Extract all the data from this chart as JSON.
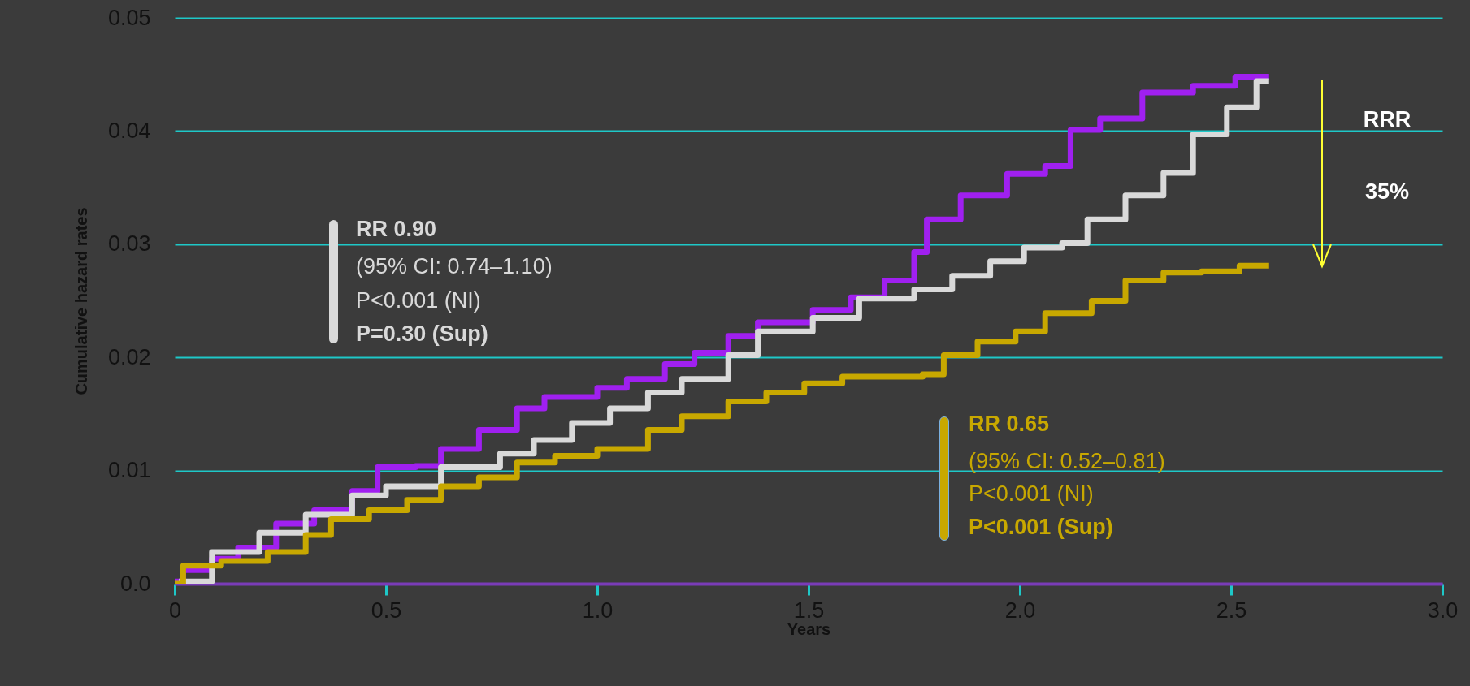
{
  "chart_data": {
    "type": "step",
    "xlabel": "Years",
    "ylabel": "Cumulative hazard rates",
    "xlim": [
      0,
      3.0
    ],
    "xticks": [
      0,
      0.5,
      {
        "value": 1,
        "label": "1.0"
      },
      1.5,
      {
        "value": 2,
        "label": "2.0"
      },
      2.5,
      {
        "value": 3,
        "label": "3.0"
      }
    ],
    "ylim": [
      0,
      0.05
    ],
    "yticks": [
      {
        "value": 0,
        "label": "0.0"
      },
      0.01,
      0.02,
      0.03,
      0.04,
      0.05
    ],
    "grid": "y",
    "legend": false,
    "marker": "none",
    "line_style": "solid",
    "annotations": [
      "RR 0.90",
      "(95% CI: 0.74–1.10)",
      "P<0.001 (NI)",
      "P=0.30 (Sup)",
      "RR 0.65",
      "(95% CI: 0.52–0.81)",
      "P<0.001 (NI)",
      "P<0.001 (Sup)",
      "RRR",
      "35%"
    ],
    "series": [
      {
        "color": "#a020f0",
        "x": [
          0,
          0.02,
          0.088,
          0.15,
          0.24,
          0.33,
          0.42,
          0.48,
          0.57,
          0.63,
          0.72,
          0.81,
          0.875,
          1.0,
          1.07,
          1.16,
          1.23,
          1.31,
          1.38,
          1.51,
          1.6,
          1.68,
          1.75,
          1.78,
          1.86,
          1.97,
          2.06,
          2.12,
          2.19,
          2.29,
          2.41,
          2.51,
          2.59
        ],
        "values": [
          0.0002,
          0.0012,
          0.0022,
          0.0032,
          0.0053,
          0.0065,
          0.0082,
          0.0103,
          0.0104,
          0.0119,
          0.0136,
          0.0155,
          0.0165,
          0.0173,
          0.0181,
          0.0194,
          0.0204,
          0.0219,
          0.0231,
          0.0242,
          0.0253,
          0.0268,
          0.0293,
          0.0322,
          0.0343,
          0.0362,
          0.0369,
          0.0401,
          0.0411,
          0.0434,
          0.044,
          0.0448,
          0.0448
        ]
      },
      {
        "color": "#d9d9d9",
        "x": [
          0.01,
          0.088,
          0.2,
          0.31,
          0.42,
          0.5,
          0.63,
          0.77,
          0.85,
          0.94,
          1.03,
          1.12,
          1.2,
          1.31,
          1.38,
          1.51,
          1.62,
          1.75,
          1.84,
          1.93,
          2.01,
          2.1,
          2.16,
          2.25,
          2.34,
          2.41,
          2.49,
          2.56,
          2.59
        ],
        "values": [
          0.0002,
          0.0028,
          0.0045,
          0.0061,
          0.0078,
          0.0086,
          0.0103,
          0.0115,
          0.0127,
          0.0142,
          0.0155,
          0.0169,
          0.0181,
          0.0202,
          0.0223,
          0.0235,
          0.0252,
          0.026,
          0.0272,
          0.0285,
          0.0297,
          0.0301,
          0.0322,
          0.0343,
          0.0363,
          0.0397,
          0.0421,
          0.0444,
          0.0444
        ]
      },
      {
        "color": "#c8a800",
        "x": [
          0,
          0.02,
          0.11,
          0.22,
          0.31,
          0.37,
          0.46,
          0.55,
          0.63,
          0.72,
          0.81,
          0.9,
          1.0,
          1.12,
          1.2,
          1.31,
          1.4,
          1.49,
          1.58,
          1.77,
          1.82,
          1.9,
          1.99,
          2.06,
          2.17,
          2.25,
          2.34,
          2.43,
          2.52,
          2.59
        ],
        "values": [
          0.0,
          0.0016,
          0.002,
          0.0028,
          0.0043,
          0.0057,
          0.0065,
          0.0074,
          0.0086,
          0.0094,
          0.0107,
          0.0113,
          0.0119,
          0.0136,
          0.0148,
          0.0161,
          0.0169,
          0.0177,
          0.0183,
          0.0185,
          0.0202,
          0.0214,
          0.0223,
          0.0239,
          0.025,
          0.0268,
          0.0275,
          0.0276,
          0.0281,
          0.0281
        ]
      }
    ]
  }
}
